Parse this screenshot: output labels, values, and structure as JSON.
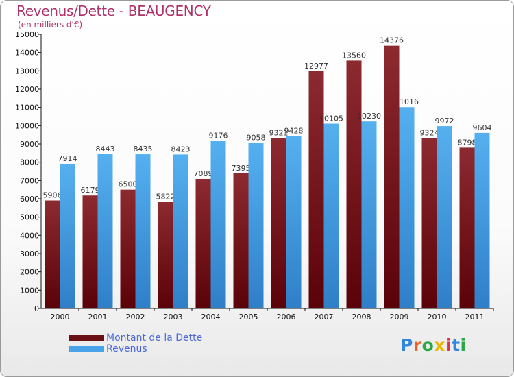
{
  "title": "Revenus/Dette - BEAUGENCY",
  "subtitle": "(en milliers d'€)",
  "chart_data": {
    "type": "bar",
    "title": "Revenus/Dette - BEAUGENCY",
    "subtitle": "(en milliers d'€)",
    "categories": [
      "2000",
      "2001",
      "2002",
      "2003",
      "2004",
      "2005",
      "2006",
      "2007",
      "2008",
      "2009",
      "2010",
      "2011"
    ],
    "series": [
      {
        "name": "Montant de la Dette",
        "color": "#7a1a1f",
        "values": [
          5906,
          6179,
          6500,
          5822,
          7089,
          7395,
          9321,
          12977,
          13560,
          14376,
          9324,
          8798
        ]
      },
      {
        "name": "Revenus",
        "color": "#4aa3e8",
        "values": [
          7914,
          8443,
          8435,
          8423,
          9176,
          9058,
          9428,
          10105,
          10230,
          11016,
          9972,
          9604
        ]
      }
    ],
    "ylim": [
      0,
      15000
    ],
    "yticks": [
      0,
      1000,
      2000,
      3000,
      4000,
      5000,
      6000,
      7000,
      8000,
      9000,
      10000,
      11000,
      12000,
      13000,
      14000,
      15000
    ],
    "grid": false,
    "legend": "bottom-left"
  },
  "legend": {
    "items": [
      {
        "label": "Montant de la Dette",
        "color": "#6b0f14"
      },
      {
        "label": "Revenus",
        "color": "#4aa3e8"
      }
    ]
  },
  "logo": {
    "letters": [
      "P",
      "r",
      "o",
      "x",
      "i",
      "t",
      "i"
    ],
    "colors": [
      "#2e86de",
      "#e2662a",
      "#27a844",
      "#e8b800",
      "#d9334a",
      "#2e86de",
      "#27a844"
    ]
  }
}
